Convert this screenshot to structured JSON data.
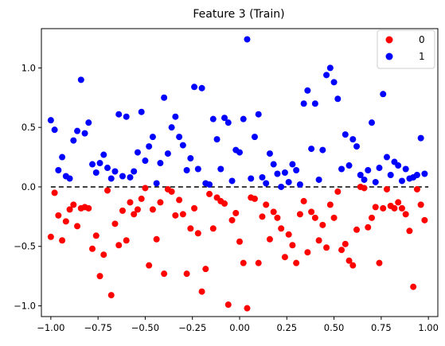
{
  "chart_data": {
    "type": "scatter",
    "title": "Feature 3 (Train)",
    "xlabel": "",
    "ylabel": "",
    "xlim": [
      -1.05,
      1.05
    ],
    "ylim": [
      -1.09,
      1.33
    ],
    "xticks": [
      -1.0,
      -0.75,
      -0.5,
      -0.25,
      0.0,
      0.25,
      0.5,
      0.75,
      1.0
    ],
    "xtick_labels": [
      "−1.00",
      "−0.75",
      "−0.50",
      "−0.25",
      "0.00",
      "0.25",
      "0.50",
      "0.75",
      "1.00"
    ],
    "yticks": [
      -1.0,
      -0.5,
      0.0,
      0.5,
      1.0
    ],
    "ytick_labels": [
      "−1.0",
      "−0.5",
      "0.0",
      "0.5",
      "1.0"
    ],
    "grid": false,
    "legend_position": "top-right",
    "reference_line": {
      "y": 0,
      "style": "dashed",
      "color": "#000000"
    },
    "series": [
      {
        "name": "0",
        "color": "#ff0000",
        "points": [
          [
            -1.0,
            -0.42
          ],
          [
            -0.98,
            -0.05
          ],
          [
            -0.96,
            -0.24
          ],
          [
            -0.94,
            -0.45
          ],
          [
            -0.92,
            -0.29
          ],
          [
            -0.9,
            -0.19
          ],
          [
            -0.88,
            -0.15
          ],
          [
            -0.86,
            -0.33
          ],
          [
            -0.84,
            -0.18
          ],
          [
            -0.82,
            -0.17
          ],
          [
            -0.8,
            -0.18
          ],
          [
            -0.78,
            -0.52
          ],
          [
            -0.76,
            -0.41
          ],
          [
            -0.74,
            -0.75
          ],
          [
            -0.72,
            -0.57
          ],
          [
            -0.7,
            -0.03
          ],
          [
            -0.68,
            -0.91
          ],
          [
            -0.66,
            -0.31
          ],
          [
            -0.64,
            -0.49
          ],
          [
            -0.62,
            -0.2
          ],
          [
            -0.6,
            -0.45
          ],
          [
            -0.58,
            -0.13
          ],
          [
            -0.56,
            -0.23
          ],
          [
            -0.54,
            -0.19
          ],
          [
            -0.52,
            -0.1
          ],
          [
            -0.5,
            -0.01
          ],
          [
            -0.48,
            -0.66
          ],
          [
            -0.46,
            -0.19
          ],
          [
            -0.44,
            -0.44
          ],
          [
            -0.42,
            -0.13
          ],
          [
            -0.4,
            -0.73
          ],
          [
            -0.38,
            -0.02
          ],
          [
            -0.36,
            -0.04
          ],
          [
            -0.34,
            -0.24
          ],
          [
            -0.32,
            -0.11
          ],
          [
            -0.3,
            -0.23
          ],
          [
            -0.28,
            -0.73
          ],
          [
            -0.26,
            -0.35
          ],
          [
            -0.24,
            -0.18
          ],
          [
            -0.22,
            -0.39
          ],
          [
            -0.2,
            -0.88
          ],
          [
            -0.18,
            -0.69
          ],
          [
            -0.16,
            -0.06
          ],
          [
            -0.14,
            -0.35
          ],
          [
            -0.12,
            -0.09
          ],
          [
            -0.1,
            -0.12
          ],
          [
            -0.08,
            -0.14
          ],
          [
            -0.06,
            -0.99
          ],
          [
            -0.04,
            -0.28
          ],
          [
            -0.02,
            -0.22
          ],
          [
            0.0,
            -0.46
          ],
          [
            0.02,
            -0.64
          ],
          [
            0.04,
            -1.02
          ],
          [
            0.06,
            -0.09
          ],
          [
            0.08,
            -0.1
          ],
          [
            0.1,
            -0.64
          ],
          [
            0.12,
            -0.25
          ],
          [
            0.14,
            -0.15
          ],
          [
            0.16,
            -0.44
          ],
          [
            0.18,
            -0.21
          ],
          [
            0.2,
            -0.26
          ],
          [
            0.22,
            -0.35
          ],
          [
            0.24,
            -0.59
          ],
          [
            0.26,
            -0.4
          ],
          [
            0.28,
            -0.49
          ],
          [
            0.3,
            -0.64
          ],
          [
            0.32,
            -0.23
          ],
          [
            0.34,
            -0.12
          ],
          [
            0.36,
            -0.55
          ],
          [
            0.38,
            -0.21
          ],
          [
            0.4,
            -0.26
          ],
          [
            0.42,
            -0.45
          ],
          [
            0.44,
            -0.32
          ],
          [
            0.46,
            -0.51
          ],
          [
            0.48,
            -0.15
          ],
          [
            0.5,
            -0.26
          ],
          [
            0.52,
            -0.04
          ],
          [
            0.54,
            -0.53
          ],
          [
            0.56,
            -0.48
          ],
          [
            0.58,
            -0.62
          ],
          [
            0.6,
            -0.66
          ],
          [
            0.62,
            -0.36
          ],
          [
            0.64,
            0.0
          ],
          [
            0.66,
            -0.01
          ],
          [
            0.68,
            -0.34
          ],
          [
            0.7,
            -0.26
          ],
          [
            0.72,
            -0.17
          ],
          [
            0.74,
            -0.64
          ],
          [
            0.76,
            -0.18
          ],
          [
            0.78,
            -0.02
          ],
          [
            0.8,
            -0.16
          ],
          [
            0.82,
            -0.18
          ],
          [
            0.84,
            -0.13
          ],
          [
            0.86,
            -0.18
          ],
          [
            0.88,
            -0.23
          ],
          [
            0.9,
            -0.37
          ],
          [
            0.92,
            -0.84
          ],
          [
            0.94,
            -0.02
          ],
          [
            0.96,
            -0.15
          ],
          [
            0.98,
            -0.28
          ]
        ]
      },
      {
        "name": "1",
        "color": "#0000ff",
        "points": [
          [
            -1.0,
            0.56
          ],
          [
            -0.98,
            0.48
          ],
          [
            -0.96,
            0.14
          ],
          [
            -0.94,
            0.25
          ],
          [
            -0.92,
            0.09
          ],
          [
            -0.9,
            0.07
          ],
          [
            -0.88,
            0.39
          ],
          [
            -0.86,
            0.47
          ],
          [
            -0.84,
            0.9
          ],
          [
            -0.82,
            0.45
          ],
          [
            -0.8,
            0.54
          ],
          [
            -0.78,
            0.19
          ],
          [
            -0.76,
            0.12
          ],
          [
            -0.74,
            0.2
          ],
          [
            -0.72,
            0.27
          ],
          [
            -0.7,
            0.16
          ],
          [
            -0.68,
            0.07
          ],
          [
            -0.66,
            0.13
          ],
          [
            -0.64,
            0.61
          ],
          [
            -0.62,
            0.09
          ],
          [
            -0.6,
            0.59
          ],
          [
            -0.58,
            0.08
          ],
          [
            -0.56,
            0.13
          ],
          [
            -0.54,
            0.29
          ],
          [
            -0.52,
            0.63
          ],
          [
            -0.5,
            0.22
          ],
          [
            -0.48,
            0.34
          ],
          [
            -0.46,
            0.42
          ],
          [
            -0.44,
            0.03
          ],
          [
            -0.42,
            0.2
          ],
          [
            -0.4,
            0.75
          ],
          [
            -0.38,
            0.28
          ],
          [
            -0.36,
            0.5
          ],
          [
            -0.34,
            0.59
          ],
          [
            -0.32,
            0.42
          ],
          [
            -0.3,
            0.35
          ],
          [
            -0.28,
            0.14
          ],
          [
            -0.26,
            0.24
          ],
          [
            -0.24,
            0.84
          ],
          [
            -0.22,
            0.15
          ],
          [
            -0.2,
            0.83
          ],
          [
            -0.18,
            0.03
          ],
          [
            -0.16,
            0.02
          ],
          [
            -0.14,
            0.57
          ],
          [
            -0.12,
            0.4
          ],
          [
            -0.1,
            0.15
          ],
          [
            -0.08,
            0.58
          ],
          [
            -0.06,
            0.54
          ],
          [
            -0.04,
            0.05
          ],
          [
            -0.02,
            0.31
          ],
          [
            0.0,
            0.29
          ],
          [
            0.02,
            0.57
          ],
          [
            0.04,
            1.24
          ],
          [
            0.06,
            0.07
          ],
          [
            0.08,
            0.42
          ],
          [
            0.1,
            0.61
          ],
          [
            0.12,
            0.08
          ],
          [
            0.14,
            0.03
          ],
          [
            0.16,
            0.28
          ],
          [
            0.18,
            0.19
          ],
          [
            0.2,
            0.11
          ],
          [
            0.22,
            0.0
          ],
          [
            0.24,
            0.12
          ],
          [
            0.26,
            0.04
          ],
          [
            0.28,
            0.19
          ],
          [
            0.3,
            0.14
          ],
          [
            0.32,
            0.02
          ],
          [
            0.34,
            0.7
          ],
          [
            0.36,
            0.81
          ],
          [
            0.38,
            0.32
          ],
          [
            0.4,
            0.7
          ],
          [
            0.42,
            0.06
          ],
          [
            0.44,
            0.31
          ],
          [
            0.46,
            0.94
          ],
          [
            0.48,
            1.0
          ],
          [
            0.5,
            0.88
          ],
          [
            0.52,
            0.74
          ],
          [
            0.54,
            0.15
          ],
          [
            0.56,
            0.44
          ],
          [
            0.58,
            0.18
          ],
          [
            0.6,
            0.4
          ],
          [
            0.62,
            0.34
          ],
          [
            0.64,
            0.1
          ],
          [
            0.66,
            0.06
          ],
          [
            0.68,
            0.14
          ],
          [
            0.7,
            0.54
          ],
          [
            0.72,
            0.04
          ],
          [
            0.74,
            0.16
          ],
          [
            0.76,
            0.78
          ],
          [
            0.78,
            0.25
          ],
          [
            0.8,
            0.1
          ],
          [
            0.82,
            0.21
          ],
          [
            0.84,
            0.18
          ],
          [
            0.86,
            0.05
          ],
          [
            0.88,
            0.15
          ],
          [
            0.9,
            0.07
          ],
          [
            0.92,
            0.08
          ],
          [
            0.94,
            0.1
          ],
          [
            0.96,
            0.41
          ],
          [
            0.98,
            0.11
          ]
        ]
      }
    ]
  }
}
